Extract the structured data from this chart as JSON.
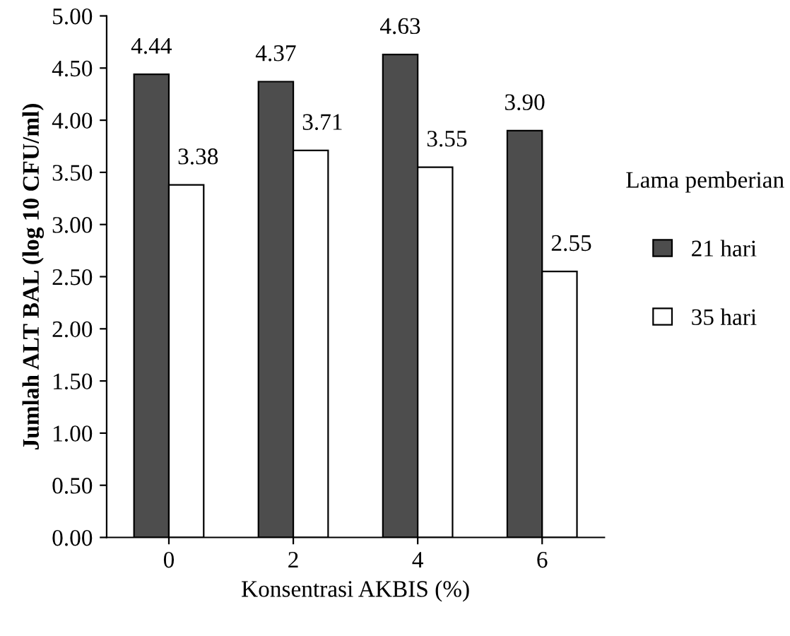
{
  "chart_data": {
    "type": "bar",
    "xlabel": "Konsentrasi AKBIS (%)",
    "ylabel": "Jumlah ALT BAL (log 10 CFU/ml)",
    "legend_title": "Lama pemberian",
    "legend": "right",
    "grid": false,
    "categories": [
      "0",
      "2",
      "4",
      "6"
    ],
    "series": [
      {
        "name": "21 hari",
        "color": "#4d4d4d",
        "values": [
          4.44,
          4.37,
          4.63,
          3.9
        ],
        "value_labels": [
          "4.44",
          "4.37",
          "4.63",
          "3.90"
        ]
      },
      {
        "name": "35 hari",
        "color": "#ffffff",
        "values": [
          3.38,
          3.71,
          3.55,
          2.55
        ],
        "value_labels": [
          "3.38",
          "3.71",
          "3.55",
          "2.55"
        ]
      }
    ],
    "ylim": [
      0,
      5
    ],
    "yticks": [
      {
        "value": 0,
        "label": "0.00"
      },
      {
        "value": 0.5,
        "label": "0.50"
      },
      {
        "value": 1,
        "label": "1.00"
      },
      {
        "value": 1.5,
        "label": "1.50"
      },
      {
        "value": 2,
        "label": "2.00"
      },
      {
        "value": 2.5,
        "label": "2.50"
      },
      {
        "value": 3,
        "label": "3.00"
      },
      {
        "value": 3.5,
        "label": "3.50"
      },
      {
        "value": 4,
        "label": "4.00"
      },
      {
        "value": 4.5,
        "label": "4.50"
      },
      {
        "value": 5,
        "label": "5.00"
      }
    ]
  }
}
